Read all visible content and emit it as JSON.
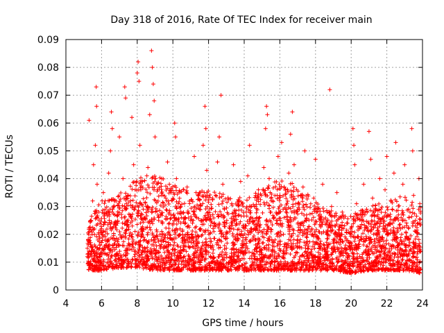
{
  "chart_data": {
    "type": "scatter",
    "title": "Day 318 of 2016, Rate Of TEC Index for receiver main",
    "xlabel": "GPS time / hours",
    "ylabel": "ROTI / TECUs",
    "xlim": [
      4,
      24
    ],
    "ylim": [
      0,
      0.09
    ],
    "xticks": [
      4,
      6,
      8,
      10,
      12,
      14,
      16,
      18,
      20,
      22,
      24
    ],
    "xtick_labels": [
      "4",
      "6",
      "8",
      "10",
      "12",
      "14",
      "16",
      "18",
      "20",
      "22",
      "24"
    ],
    "yticks": [
      0,
      0.01,
      0.02,
      0.03,
      0.04,
      0.05,
      0.06,
      0.07,
      0.08,
      0.09
    ],
    "ytick_labels": [
      "0",
      "0.01",
      "0.02",
      "0.03",
      "0.04",
      "0.05",
      "0.06",
      "0.07",
      "0.08",
      "0.09"
    ],
    "grid": true,
    "marker": "+",
    "color": "#ff0000",
    "series": [
      {
        "name": "ROTI",
        "points": [
          [
            5.2,
            0.012
          ],
          [
            5.25,
            0.018
          ],
          [
            5.3,
            0.061
          ],
          [
            5.35,
            0.008
          ],
          [
            5.4,
            0.025
          ],
          [
            5.45,
            0.014
          ],
          [
            5.5,
            0.032
          ],
          [
            5.55,
            0.045
          ],
          [
            5.6,
            0.02
          ],
          [
            5.65,
            0.052
          ],
          [
            5.7,
            0.073
          ],
          [
            5.72,
            0.066
          ],
          [
            5.75,
            0.038
          ],
          [
            5.8,
            0.011
          ],
          [
            5.85,
            0.028
          ],
          [
            5.9,
            0.015
          ],
          [
            5.95,
            0.009
          ],
          [
            6.0,
            0.022
          ],
          [
            6.1,
            0.035
          ],
          [
            6.2,
            0.013
          ],
          [
            6.3,
            0.018
          ],
          [
            6.4,
            0.042
          ],
          [
            6.5,
            0.05
          ],
          [
            6.55,
            0.064
          ],
          [
            6.6,
            0.058
          ],
          [
            6.7,
            0.03
          ],
          [
            6.8,
            0.012
          ],
          [
            6.9,
            0.024
          ],
          [
            7.0,
            0.055
          ],
          [
            7.1,
            0.019
          ],
          [
            7.2,
            0.04
          ],
          [
            7.3,
            0.073
          ],
          [
            7.35,
            0.069
          ],
          [
            7.4,
            0.033
          ],
          [
            7.5,
            0.016
          ],
          [
            7.6,
            0.027
          ],
          [
            7.7,
            0.062
          ],
          [
            7.8,
            0.045
          ],
          [
            7.9,
            0.014
          ],
          [
            8.0,
            0.078
          ],
          [
            8.05,
            0.082
          ],
          [
            8.1,
            0.075
          ],
          [
            8.15,
            0.052
          ],
          [
            8.2,
            0.036
          ],
          [
            8.3,
            0.021
          ],
          [
            8.4,
            0.01
          ],
          [
            8.5,
            0.03
          ],
          [
            8.6,
            0.044
          ],
          [
            8.7,
            0.063
          ],
          [
            8.8,
            0.086
          ],
          [
            8.85,
            0.08
          ],
          [
            8.9,
            0.074
          ],
          [
            8.95,
            0.068
          ],
          [
            9.0,
            0.055
          ],
          [
            9.1,
            0.038
          ],
          [
            9.2,
            0.025
          ],
          [
            9.3,
            0.015
          ],
          [
            9.4,
            0.009
          ],
          [
            9.5,
            0.02
          ],
          [
            9.6,
            0.033
          ],
          [
            9.7,
            0.046
          ],
          [
            9.8,
            0.028
          ],
          [
            9.9,
            0.012
          ],
          [
            10.0,
            0.018
          ],
          [
            10.1,
            0.06
          ],
          [
            10.15,
            0.055
          ],
          [
            10.2,
            0.04
          ],
          [
            10.3,
            0.031
          ],
          [
            10.4,
            0.022
          ],
          [
            10.5,
            0.014
          ],
          [
            10.6,
            0.008
          ],
          [
            10.7,
            0.026
          ],
          [
            10.8,
            0.037
          ],
          [
            10.9,
            0.019
          ],
          [
            11.0,
            0.011
          ],
          [
            11.1,
            0.024
          ],
          [
            11.2,
            0.048
          ],
          [
            11.3,
            0.035
          ],
          [
            11.4,
            0.017
          ],
          [
            11.5,
            0.029
          ],
          [
            11.6,
            0.013
          ],
          [
            11.7,
            0.052
          ],
          [
            11.8,
            0.066
          ],
          [
            11.85,
            0.058
          ],
          [
            11.9,
            0.043
          ],
          [
            12.0,
            0.027
          ],
          [
            12.1,
            0.016
          ],
          [
            12.2,
            0.01
          ],
          [
            12.3,
            0.021
          ],
          [
            12.4,
            0.034
          ],
          [
            12.5,
            0.046
          ],
          [
            12.6,
            0.055
          ],
          [
            12.7,
            0.07
          ],
          [
            12.8,
            0.038
          ],
          [
            12.9,
            0.024
          ],
          [
            13.0,
            0.015
          ],
          [
            13.1,
            0.009
          ],
          [
            13.2,
            0.022
          ],
          [
            13.3,
            0.031
          ],
          [
            13.4,
            0.045
          ],
          [
            13.5,
            0.019
          ],
          [
            13.6,
            0.012
          ],
          [
            13.7,
            0.027
          ],
          [
            13.8,
            0.039
          ],
          [
            13.9,
            0.016
          ],
          [
            14.0,
            0.008
          ],
          [
            14.1,
            0.023
          ],
          [
            14.2,
            0.041
          ],
          [
            14.3,
            0.052
          ],
          [
            14.4,
            0.03
          ],
          [
            14.5,
            0.018
          ],
          [
            14.6,
            0.011
          ],
          [
            14.7,
            0.026
          ],
          [
            14.8,
            0.036
          ],
          [
            14.9,
            0.014
          ],
          [
            15.0,
            0.021
          ],
          [
            15.1,
            0.044
          ],
          [
            15.2,
            0.058
          ],
          [
            15.25,
            0.066
          ],
          [
            15.3,
            0.063
          ],
          [
            15.4,
            0.04
          ],
          [
            15.5,
            0.028
          ],
          [
            15.6,
            0.017
          ],
          [
            15.7,
            0.01
          ],
          [
            15.8,
            0.025
          ],
          [
            15.9,
            0.048
          ],
          [
            16.0,
            0.034
          ],
          [
            16.1,
            0.053
          ],
          [
            16.2,
            0.02
          ],
          [
            16.3,
            0.013
          ],
          [
            16.4,
            0.029
          ],
          [
            16.5,
            0.042
          ],
          [
            16.6,
            0.056
          ],
          [
            16.7,
            0.064
          ],
          [
            16.8,
            0.045
          ],
          [
            16.9,
            0.031
          ],
          [
            17.0,
            0.018
          ],
          [
            17.1,
            0.011
          ],
          [
            17.2,
            0.024
          ],
          [
            17.3,
            0.037
          ],
          [
            17.4,
            0.05
          ],
          [
            17.5,
            0.027
          ],
          [
            17.6,
            0.015
          ],
          [
            17.7,
            0.008
          ],
          [
            17.8,
            0.022
          ],
          [
            17.9,
            0.033
          ],
          [
            18.0,
            0.047
          ],
          [
            18.1,
            0.019
          ],
          [
            18.2,
            0.012
          ],
          [
            18.3,
            0.026
          ],
          [
            18.4,
            0.038
          ],
          [
            18.5,
            0.016
          ],
          [
            18.6,
            0.009
          ],
          [
            18.7,
            0.021
          ],
          [
            18.8,
            0.072
          ],
          [
            18.9,
            0.03
          ],
          [
            19.0,
            0.014
          ],
          [
            19.1,
            0.023
          ],
          [
            19.2,
            0.035
          ],
          [
            19.3,
            0.011
          ],
          [
            19.4,
            0.018
          ],
          [
            19.5,
            0.028
          ],
          [
            19.6,
            0.007
          ],
          [
            19.7,
            0.015
          ],
          [
            19.8,
            0.024
          ],
          [
            19.9,
            0.012
          ],
          [
            20.0,
            0.02
          ],
          [
            20.1,
            0.058
          ],
          [
            20.15,
            0.052
          ],
          [
            20.2,
            0.045
          ],
          [
            20.3,
            0.031
          ],
          [
            20.4,
            0.019
          ],
          [
            20.5,
            0.01
          ],
          [
            20.6,
            0.025
          ],
          [
            20.7,
            0.038
          ],
          [
            20.8,
            0.014
          ],
          [
            20.9,
            0.022
          ],
          [
            21.0,
            0.057
          ],
          [
            21.1,
            0.047
          ],
          [
            21.2,
            0.033
          ],
          [
            21.3,
            0.018
          ],
          [
            21.4,
            0.011
          ],
          [
            21.5,
            0.027
          ],
          [
            21.6,
            0.04
          ],
          [
            21.7,
            0.015
          ],
          [
            21.8,
            0.024
          ],
          [
            21.9,
            0.036
          ],
          [
            22.0,
            0.048
          ],
          [
            22.1,
            0.02
          ],
          [
            22.2,
            0.012
          ],
          [
            22.3,
            0.029
          ],
          [
            22.4,
            0.042
          ],
          [
            22.5,
            0.053
          ],
          [
            22.6,
            0.017
          ],
          [
            22.7,
            0.01
          ],
          [
            22.8,
            0.026
          ],
          [
            22.9,
            0.038
          ],
          [
            23.0,
            0.045
          ],
          [
            23.1,
            0.019
          ],
          [
            23.2,
            0.013
          ],
          [
            23.3,
            0.028
          ],
          [
            23.4,
            0.058
          ],
          [
            23.45,
            0.05
          ],
          [
            23.5,
            0.034
          ],
          [
            23.6,
            0.016
          ],
          [
            23.7,
            0.009
          ],
          [
            23.75,
            0.024
          ],
          [
            23.8,
            0.04
          ],
          [
            23.85,
            0.031
          ],
          [
            23.9,
            0.014
          ]
        ]
      }
    ],
    "density_envelope": {
      "x": [
        5.2,
        6,
        7,
        8,
        9,
        10,
        11,
        12,
        13,
        14,
        15,
        16,
        17,
        18,
        19,
        20,
        21,
        22,
        23,
        23.9
      ],
      "upper": [
        0.025,
        0.032,
        0.035,
        0.04,
        0.042,
        0.038,
        0.035,
        0.036,
        0.034,
        0.033,
        0.036,
        0.04,
        0.038,
        0.032,
        0.028,
        0.027,
        0.03,
        0.032,
        0.034,
        0.03
      ],
      "lower": [
        0.007,
        0.007,
        0.008,
        0.008,
        0.007,
        0.007,
        0.007,
        0.007,
        0.007,
        0.007,
        0.007,
        0.007,
        0.007,
        0.007,
        0.007,
        0.006,
        0.007,
        0.007,
        0.007,
        0.006
      ]
    }
  }
}
